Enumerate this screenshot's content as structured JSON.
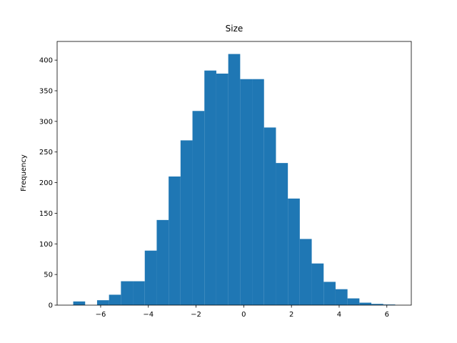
{
  "chart_data": {
    "type": "histogram",
    "title": "Size",
    "y_label": "Frequency",
    "bins": [
      -7.15,
      -6.65,
      -6.15,
      -5.65,
      -5.15,
      -4.65,
      -4.15,
      -3.65,
      -3.15,
      -2.65,
      -2.15,
      -1.65,
      -1.15,
      -0.65,
      -0.15,
      0.35,
      0.85,
      1.35,
      1.85,
      2.35,
      2.85,
      3.35,
      3.85,
      4.35,
      4.85,
      5.35,
      5.85,
      6.35
    ],
    "values": [
      6,
      0,
      8,
      17,
      39,
      39,
      89,
      139,
      210,
      269,
      317,
      383,
      378,
      410,
      369,
      369,
      290,
      232,
      174,
      108,
      68,
      38,
      26,
      11,
      4,
      2,
      1
    ],
    "color": "#1f77b4",
    "xlim": [
      -7.825,
      7.025
    ],
    "ylim": [
      0,
      430.5
    ],
    "xticks": [
      {
        "value": -6,
        "label": "−6"
      },
      {
        "value": -4,
        "label": "−4"
      },
      {
        "value": -2,
        "label": "−2"
      },
      0,
      2,
      4,
      6
    ],
    "yticks": [
      0,
      50,
      100,
      150,
      200,
      250,
      300,
      350,
      400
    ]
  }
}
